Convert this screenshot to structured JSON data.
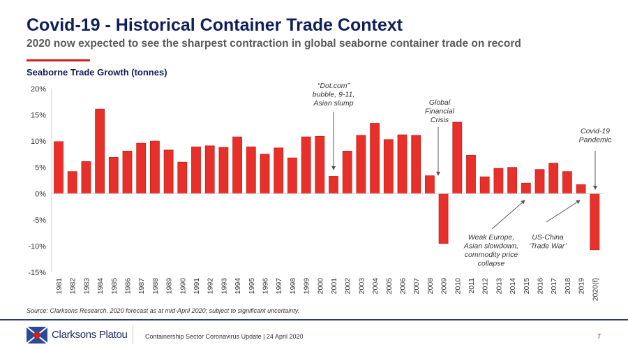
{
  "header": {
    "title": "Covid-19 - Historical Container Trade Context",
    "subtitle": "2020 now expected to see the sharpest contraction in global seaborne container trade on record"
  },
  "chart_data": {
    "type": "bar",
    "title": "Seaborne Trade Growth (tonnes)",
    "xlabel": "",
    "ylabel": "",
    "ylim": [
      -15,
      20
    ],
    "yticks": [
      20,
      15,
      10,
      5,
      0,
      -5,
      -10,
      -15
    ],
    "ytick_labels": [
      "20%",
      "15%",
      "10%",
      "5%",
      "0%",
      "-5%",
      "-10%",
      "-15%"
    ],
    "grid": false,
    "categories": [
      "1981",
      "1982",
      "1983",
      "1984",
      "1985",
      "1986",
      "1987",
      "1988",
      "1989",
      "1990",
      "1991",
      "1992",
      "1993",
      "1994",
      "1995",
      "1996",
      "1997",
      "1998",
      "1999",
      "2000",
      "2001",
      "2002",
      "2003",
      "2004",
      "2005",
      "2006",
      "2007",
      "2008",
      "2009",
      "2010",
      "2011",
      "2012",
      "2013",
      "2014",
      "2015",
      "2016",
      "2017",
      "2018",
      "2019",
      "2020(f)"
    ],
    "values": [
      9.9,
      4.2,
      6.1,
      16.1,
      6.9,
      8.1,
      9.6,
      10.0,
      8.3,
      6.0,
      8.9,
      9.1,
      8.8,
      10.8,
      8.9,
      7.5,
      8.7,
      6.8,
      10.8,
      10.9,
      3.3,
      8.1,
      11.1,
      13.4,
      10.3,
      11.2,
      11.1,
      3.4,
      -9.5,
      13.6,
      7.3,
      3.2,
      4.8,
      5.0,
      2.0,
      4.6,
      5.8,
      4.2,
      1.7,
      -10.7
    ],
    "color": "#e8302a",
    "annotations": [
      {
        "lines": [
          "“Dot.com”",
          "bubble, 9-11,",
          "Asian slump"
        ],
        "target": "2001"
      },
      {
        "lines": [
          "Global",
          "Financial",
          "Crisis"
        ],
        "target": "2009"
      },
      {
        "lines": [
          "Covid-19",
          "Pandemic"
        ],
        "target": "2020(f)"
      },
      {
        "lines": [
          "Weak Europe,",
          "Asian slowdown,",
          "commodity price",
          "collapse"
        ],
        "target": "2015"
      },
      {
        "lines": [
          "US-China",
          "‘Trade War’"
        ],
        "target": "2019"
      }
    ]
  },
  "source": "Source: Clarksons Research. 2020 forecast as at mid-April 2020; subject to significant uncertainty.",
  "footer": {
    "brand": "Clarksons Platou",
    "text": "Containership Sector Coronavirus Update | 24 April 2020",
    "page": "7"
  }
}
